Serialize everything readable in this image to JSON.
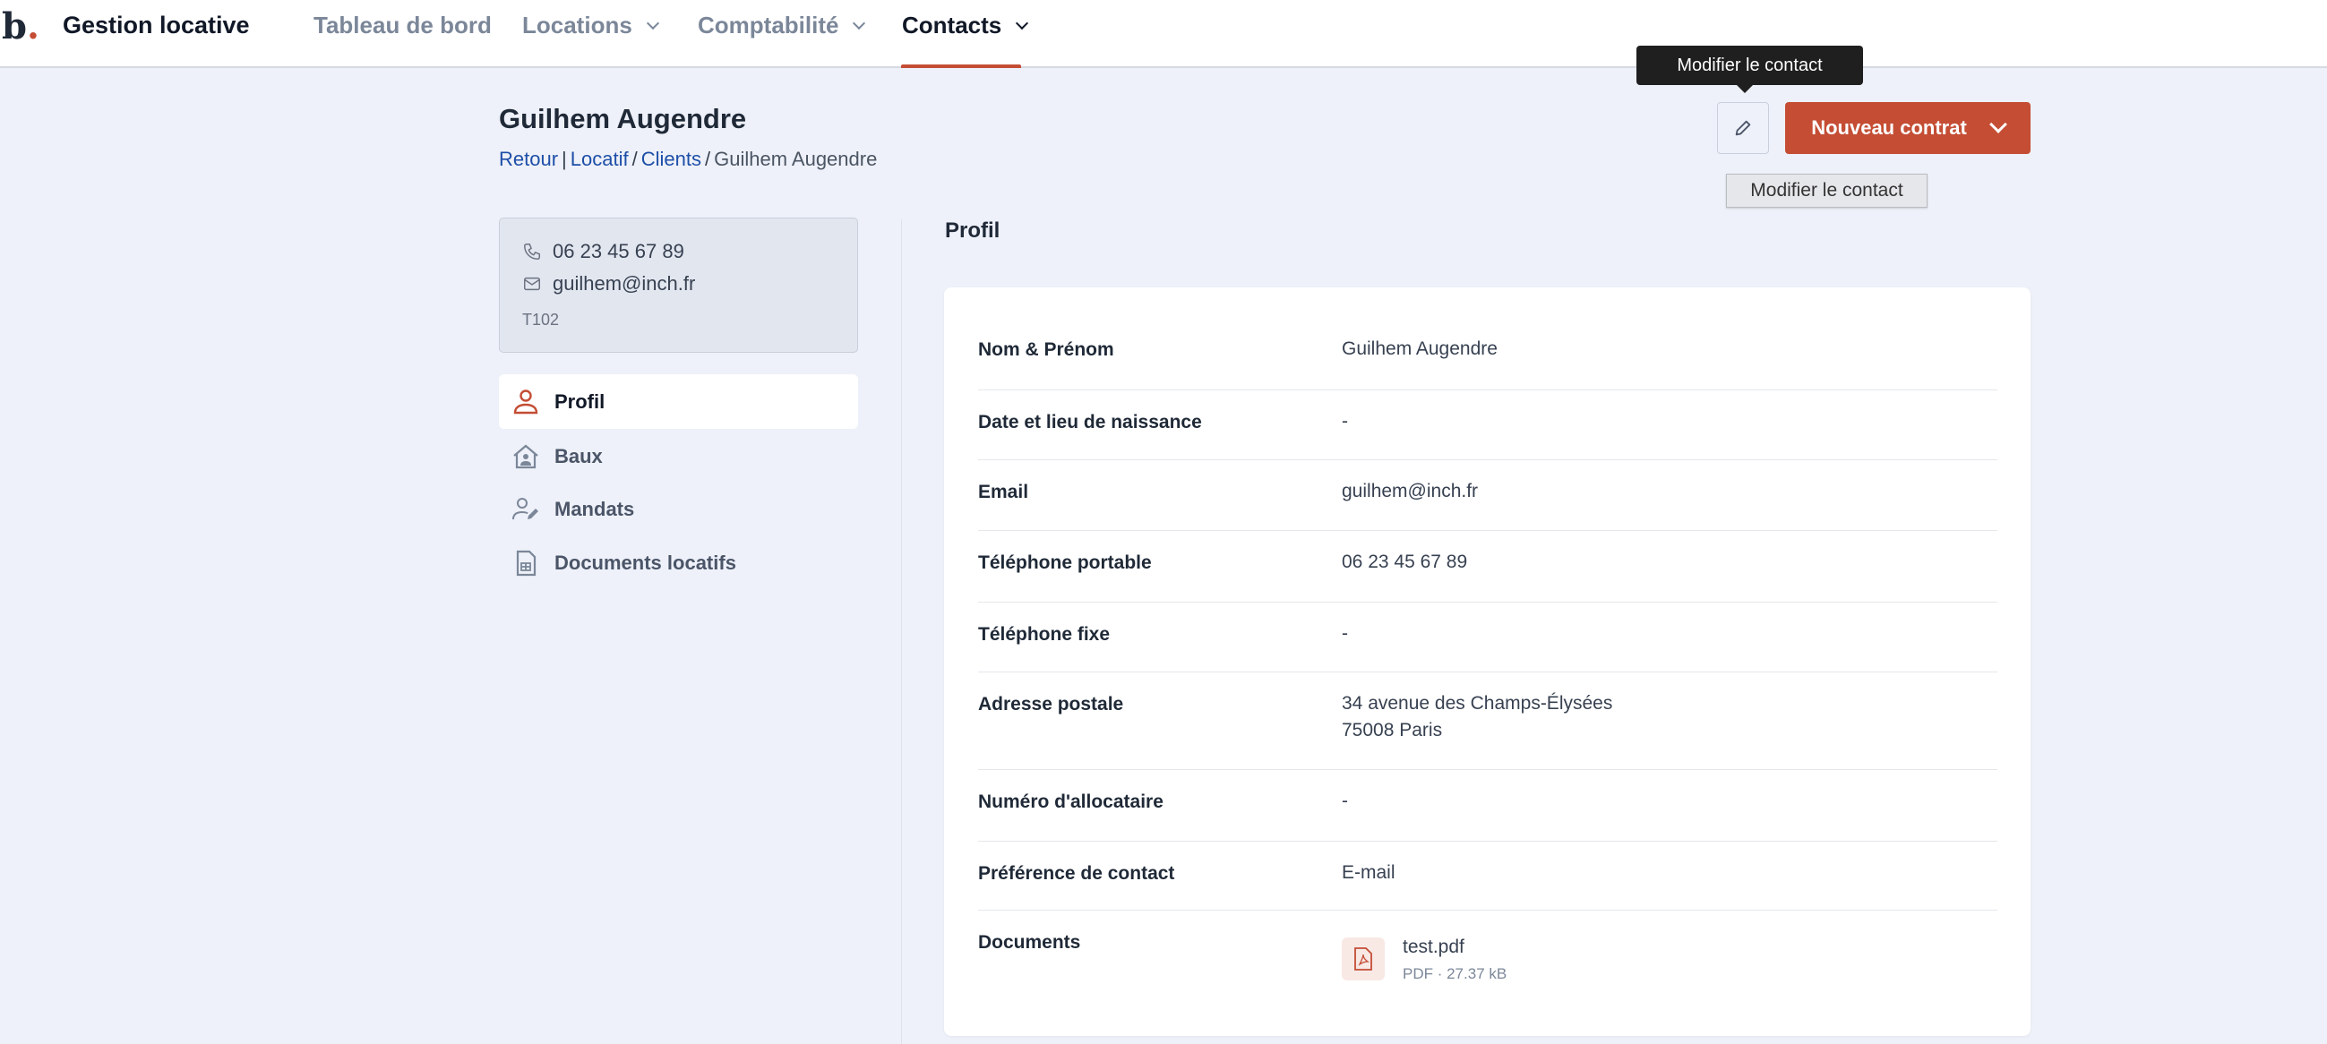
{
  "header": {
    "logo": "b",
    "logo_dot": ".",
    "app_title": "Gestion locative",
    "nav": [
      {
        "label": "Tableau de bord"
      },
      {
        "label": "Locations"
      },
      {
        "label": "Comptabilité"
      },
      {
        "label": "Contacts",
        "active": true
      }
    ]
  },
  "page": {
    "title": "Guilhem Augendre",
    "breadcrumb": {
      "back": "Retour",
      "items": [
        "Locatif",
        "Clients"
      ],
      "current": "Guilhem Augendre",
      "sep1": "|",
      "sep2": "/"
    }
  },
  "actions": {
    "new_contract": "Nouveau contrat",
    "edit_tooltip": "Modifier le contact",
    "edit_title_tooltip": "Modifier le contact"
  },
  "contact_card": {
    "phone": "06 23 45 67 89",
    "email": "guilhem@inch.fr",
    "reference": "T102"
  },
  "menu": [
    {
      "label": "Profil",
      "icon": "user-icon",
      "active": true
    },
    {
      "label": "Baux",
      "icon": "house-user-icon"
    },
    {
      "label": "Mandats",
      "icon": "user-edit-icon"
    },
    {
      "label": "Documents locatifs",
      "icon": "document-table-icon"
    }
  ],
  "profile": {
    "section_title": "Profil",
    "rows": [
      {
        "label": "Nom & Prénom",
        "value": "Guilhem Augendre"
      },
      {
        "label": "Date et lieu de naissance",
        "value": "-"
      },
      {
        "label": "Email",
        "value": "guilhem@inch.fr"
      },
      {
        "label": "Téléphone portable",
        "value": "06 23 45 67 89"
      },
      {
        "label": "Téléphone fixe",
        "value": "-"
      },
      {
        "label": "Adresse postale",
        "value": "34 avenue des Champs-Élysées",
        "value2": "75008 Paris"
      },
      {
        "label": "Numéro d'allocataire",
        "value": "-"
      },
      {
        "label": "Préférence de contact",
        "value": "E-mail"
      },
      {
        "label": "Documents",
        "document": {
          "name": "test.pdf",
          "meta": "PDF · 27.37 kB"
        }
      }
    ]
  },
  "colors": {
    "accent": "#c44d34",
    "background": "#eef1f9"
  }
}
